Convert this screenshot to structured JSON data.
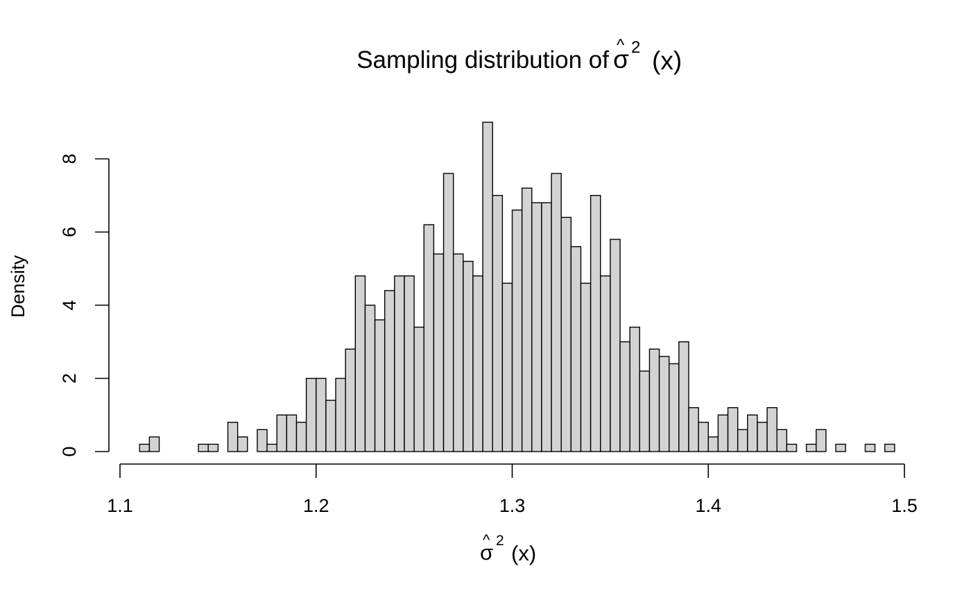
{
  "chart_data": {
    "type": "bar",
    "title": {
      "prefix": "Sampling distribution of ",
      "symbol": "σ",
      "hat": "^",
      "superscript": "2",
      "suffix": "(x)"
    },
    "xlabel": {
      "symbol": "σ",
      "hat": "^",
      "superscript": "2",
      "suffix": "(x)"
    },
    "ylabel": "Density",
    "x_ticks": [
      "1.1",
      "1.2",
      "1.3",
      "1.4",
      "1.5"
    ],
    "y_ticks": [
      "0",
      "2",
      "4",
      "6",
      "8"
    ],
    "xlim": [
      1.1,
      1.5
    ],
    "ylim": [
      0,
      9
    ],
    "bin_width": 0.005,
    "bin_start": 1.11,
    "values": [
      0.2,
      0.4,
      0,
      0,
      0,
      0,
      0.2,
      0.2,
      0,
      0.8,
      0.4,
      0,
      0.6,
      0.2,
      1.0,
      1.0,
      0.8,
      2.0,
      2.0,
      1.4,
      2.0,
      2.8,
      4.8,
      4.0,
      3.6,
      4.4,
      4.8,
      4.8,
      3.4,
      6.2,
      5.4,
      7.6,
      5.4,
      5.2,
      4.8,
      9.0,
      7.0,
      4.6,
      6.6,
      7.2,
      6.8,
      6.8,
      7.6,
      6.4,
      5.6,
      4.6,
      7.0,
      4.8,
      5.8,
      3.0,
      3.4,
      2.2,
      2.8,
      2.6,
      2.4,
      3.0,
      1.2,
      0.8,
      0.4,
      1.0,
      1.2,
      0.6,
      1.0,
      0.8,
      1.2,
      0.6,
      0.2,
      0,
      0.2,
      0.6,
      0,
      0.2,
      0,
      0,
      0.2,
      0,
      0.2
    ],
    "bar_fill": "#d3d3d3",
    "bar_stroke": "#000000",
    "grid": false,
    "legend": "none"
  }
}
